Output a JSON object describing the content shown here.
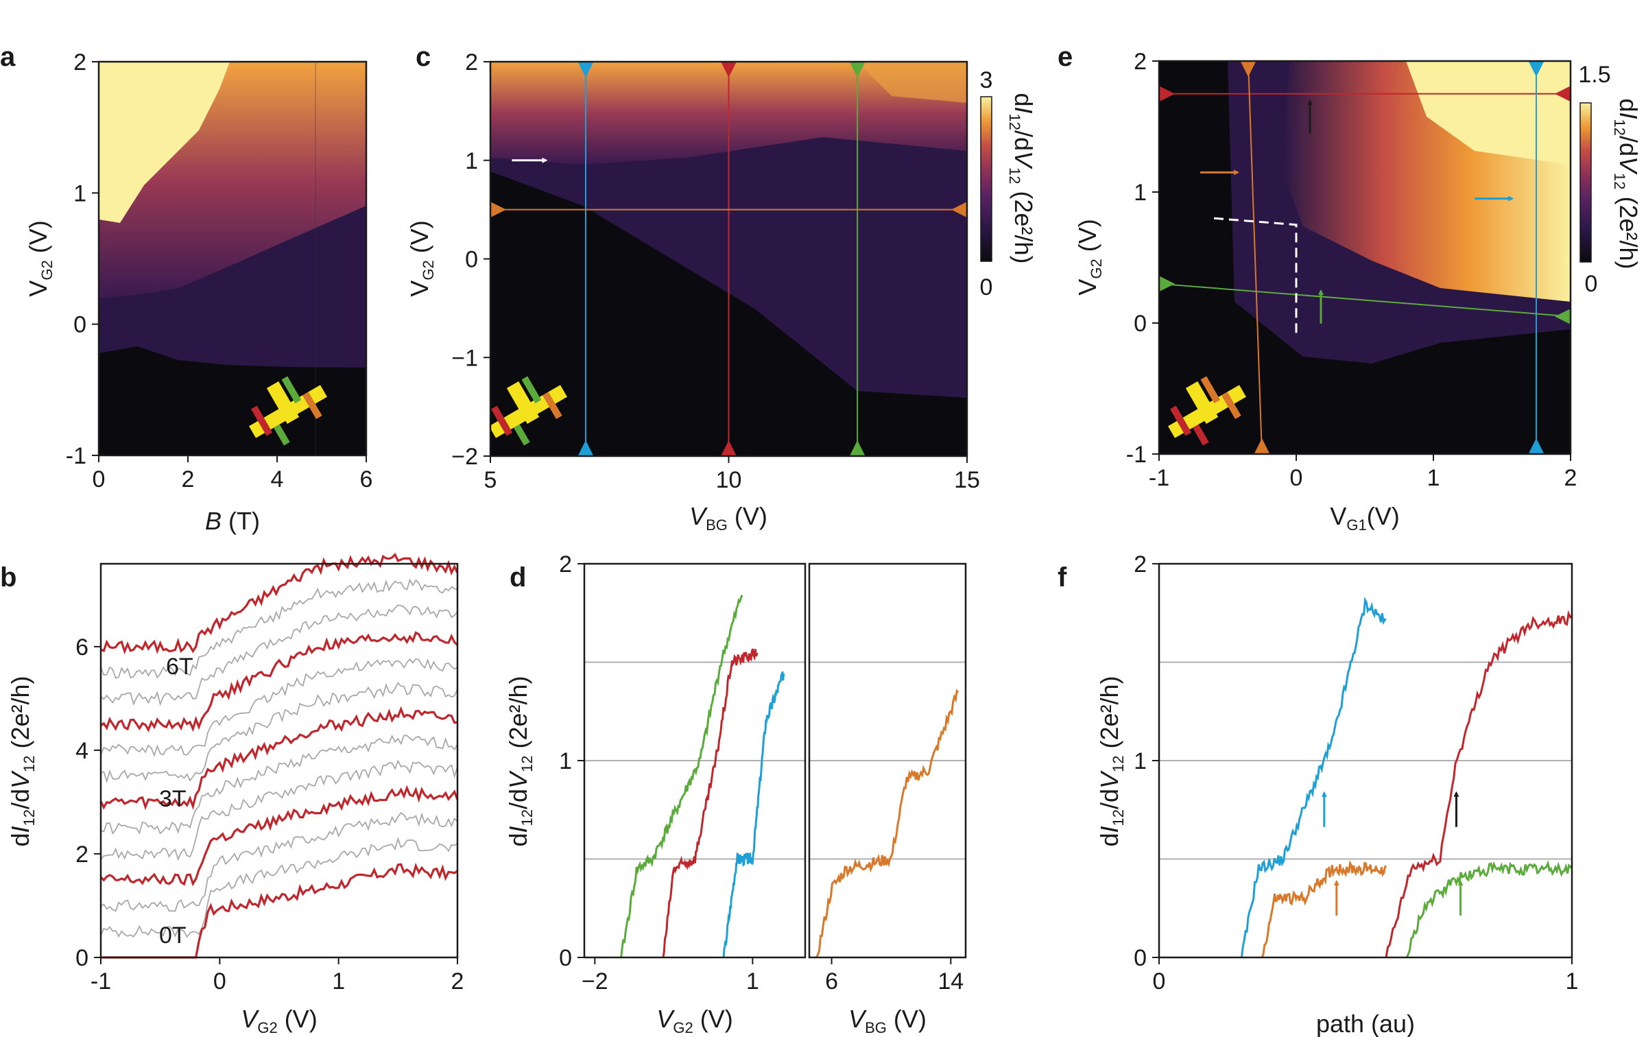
{
  "figure": {
    "colors": {
      "heat": [
        "#0b0b0f",
        "#2a1746",
        "#4f2360",
        "#80305a",
        "#b8464c",
        "#e07a2e",
        "#f3b24a",
        "#faf0a0"
      ],
      "red": "#c0272d",
      "blue": "#1ea0d6",
      "green": "#5aaa3c",
      "orange": "#d7782a",
      "gray": "#a8a8a8",
      "black": "#1a1a1a",
      "white": "#ffffff"
    }
  },
  "chart_data": [
    {
      "id": "a",
      "panel_label": "a",
      "type": "heatmap",
      "xlabel": "B (T)",
      "xlabel_italic": "B",
      "xlabel_rest": " (T)",
      "ylabel_main": "V",
      "ylabel_sub": "G2",
      "ylabel_unit": " (V)",
      "xlim": [
        0,
        6
      ],
      "ylim": [
        -1,
        2
      ],
      "xticks": [
        "0",
        "2",
        "4",
        "6"
      ],
      "yticks": [
        "-1",
        "0",
        "1",
        "2"
      ],
      "description_points": {
        "boundary_B": [
          0,
          1,
          2,
          3,
          4,
          5,
          6
        ],
        "onset_VG2": [
          -0.05,
          -0.15,
          -0.2,
          -0.25,
          -0.3,
          -0.3,
          -0.3
        ],
        "bright_VG2": [
          0.7,
          0.9,
          1.2,
          1.5,
          1.75,
          1.9,
          2.0
        ]
      }
    },
    {
      "id": "c",
      "panel_label": "c",
      "type": "heatmap",
      "xlabel_main": "V",
      "xlabel_sub": "BG",
      "xlabel_unit": " (V)",
      "ylabel_main": "V",
      "ylabel_sub": "G2",
      "ylabel_unit": " (V)",
      "xlim": [
        5,
        15
      ],
      "ylim": [
        -2,
        2
      ],
      "xticks": [
        "5",
        "10",
        "15"
      ],
      "yticks": [
        "−2",
        "−1",
        "0",
        "1",
        "2"
      ],
      "colorbar": {
        "min_label": "0",
        "max_label": "3",
        "label": "dI12/dV12 (2e²/h)"
      },
      "cuts": [
        {
          "color": "blue",
          "orientation": "vertical",
          "value": 7
        },
        {
          "color": "red",
          "orientation": "vertical",
          "value": 10
        },
        {
          "color": "green",
          "orientation": "vertical",
          "value": 12.7
        },
        {
          "color": "orange",
          "orientation": "horizontal",
          "value": 0.5
        }
      ],
      "arrows": [
        {
          "color": "white",
          "direction": "right",
          "x": 6.1,
          "y": 1.0
        }
      ]
    },
    {
      "id": "e",
      "panel_label": "e",
      "type": "heatmap",
      "xlabel_main": "V",
      "xlabel_sub": "G1",
      "xlabel_unit": "(V)",
      "ylabel_main": "V",
      "ylabel_sub": "G2",
      "ylabel_unit": " (V)",
      "xlim": [
        -1,
        2
      ],
      "ylim": [
        -1,
        2
      ],
      "xticks": [
        "-1",
        "0",
        "1",
        "2"
      ],
      "yticks": [
        "-1",
        "0",
        "1",
        "2"
      ],
      "colorbar": {
        "min_label": "0",
        "max_label": "1.5",
        "label": "dI12/dV12 (2e²/h)"
      },
      "cuts": [
        {
          "color": "red",
          "from": [
            -1,
            1.75
          ],
          "to": [
            2,
            1.75
          ]
        },
        {
          "color": "blue",
          "from": [
            1.75,
            2
          ],
          "to": [
            1.75,
            -1
          ]
        },
        {
          "color": "green",
          "from": [
            -1,
            0.3
          ],
          "to": [
            2,
            0.05
          ]
        },
        {
          "color": "orange",
          "from": [
            -0.35,
            2
          ],
          "to": [
            -0.25,
            -1
          ]
        }
      ],
      "dashed_path": {
        "color": "white",
        "points": [
          [
            -0.6,
            0.8
          ],
          [
            0,
            0.75
          ],
          [
            0,
            -0.1
          ]
        ]
      },
      "arrows": [
        {
          "color": "black",
          "direction": "up",
          "x": 0.1,
          "y": 1.55
        },
        {
          "color": "orange",
          "direction": "right",
          "x": -0.55,
          "y": 1.15
        },
        {
          "color": "blue",
          "direction": "right",
          "x": 1.45,
          "y": 0.95
        },
        {
          "color": "green",
          "direction": "up",
          "x": 0.18,
          "y": 0.1
        }
      ]
    },
    {
      "id": "b",
      "panel_label": "b",
      "type": "line",
      "xlabel_main": "V",
      "xlabel_sub": "G2",
      "xlabel_unit": " (V)",
      "ylabel": "dI12/dV12 (2e²/h)",
      "xlim": [
        -1,
        2
      ],
      "ylim": [
        0,
        7.6
      ],
      "xticks": [
        "-1",
        "0",
        "1",
        "2"
      ],
      "yticks": [
        "0",
        "2",
        "4",
        "6"
      ],
      "fields_T": [
        0,
        0.5,
        1,
        1.5,
        2,
        2.5,
        3,
        3.5,
        4,
        4.5,
        5,
        5.5,
        6
      ],
      "offset_per_0_5T": 0.5,
      "highlighted_fields_T": [
        0,
        1.5,
        3,
        4.5,
        6
      ],
      "annotations": [
        "6T",
        "3T",
        "0T"
      ]
    },
    {
      "id": "d1",
      "panel_label": "d",
      "type": "line",
      "xlabel_main": "V",
      "xlabel_sub": "G2",
      "xlabel_unit": " (V)",
      "ylabel": "dI12/dV12 (2e²/h)",
      "xlim": [
        -2.2,
        2
      ],
      "ylim": [
        0,
        2
      ],
      "xticks": [
        "−2",
        "1"
      ],
      "yticks": [
        "0",
        "1",
        "2"
      ],
      "gridlines_y": [
        0.5,
        1.0,
        1.5
      ],
      "series": [
        {
          "name": "green",
          "x": [
            -1.5,
            -1.2,
            -0.9,
            0.0,
            0.4,
            0.8
          ],
          "y": [
            0,
            0.45,
            0.5,
            1.0,
            1.5,
            1.85
          ]
        },
        {
          "name": "red",
          "x": [
            -0.7,
            -0.5,
            -0.1,
            0.3,
            0.6,
            1.1
          ],
          "y": [
            0,
            0.45,
            0.5,
            1.0,
            1.5,
            1.55
          ]
        },
        {
          "name": "blue",
          "x": [
            0.45,
            0.7,
            1.0,
            1.25,
            1.6
          ],
          "y": [
            0,
            0.5,
            0.5,
            1.2,
            1.45
          ]
        }
      ]
    },
    {
      "id": "d2",
      "panel_label": "",
      "type": "line",
      "xlabel_main": "V",
      "xlabel_sub": "BG",
      "xlabel_unit": " (V)",
      "xlim": [
        4.5,
        15
      ],
      "ylim": [
        0,
        2
      ],
      "xticks": [
        "6",
        "14"
      ],
      "gridlines_y": [
        0.5,
        1.0,
        1.5
      ],
      "series": [
        {
          "name": "orange",
          "x": [
            5,
            6,
            7,
            10,
            11,
            12.5,
            14.5
          ],
          "y": [
            0,
            0.35,
            0.45,
            0.5,
            0.9,
            0.95,
            1.35
          ]
        }
      ]
    },
    {
      "id": "f",
      "panel_label": "f",
      "type": "line",
      "xlabel": "path (au)",
      "ylabel": "dI12/dV12 (2e²/h)",
      "xlim": [
        0,
        1
      ],
      "ylim": [
        0,
        2
      ],
      "xticks": [
        "0",
        "1"
      ],
      "yticks": [
        "0",
        "1",
        "2"
      ],
      "gridlines_y": [
        0.5,
        1.0,
        1.5
      ],
      "series": [
        {
          "name": "blue",
          "x": [
            0.2,
            0.24,
            0.3,
            0.36,
            0.42,
            0.5,
            0.55
          ],
          "y": [
            0,
            0.45,
            0.5,
            0.8,
            1.1,
            1.8,
            1.7
          ]
        },
        {
          "name": "orange",
          "x": [
            0.25,
            0.28,
            0.35,
            0.42,
            0.55
          ],
          "y": [
            0,
            0.3,
            0.3,
            0.45,
            0.45
          ]
        },
        {
          "name": "red",
          "x": [
            0.55,
            0.61,
            0.68,
            0.72,
            0.8,
            0.9,
            1.0
          ],
          "y": [
            0,
            0.45,
            0.5,
            1.0,
            1.5,
            1.7,
            1.72
          ]
        },
        {
          "name": "green",
          "x": [
            0.6,
            0.64,
            0.72,
            0.8,
            1.0
          ],
          "y": [
            0,
            0.25,
            0.4,
            0.45,
            0.45
          ]
        }
      ],
      "arrows": [
        {
          "color": "blue",
          "x": 0.4,
          "y": 0.75
        },
        {
          "color": "orange",
          "x": 0.43,
          "y": 0.3
        },
        {
          "color": "black",
          "x": 0.72,
          "y": 0.75
        },
        {
          "color": "green",
          "x": 0.73,
          "y": 0.3
        }
      ]
    }
  ]
}
